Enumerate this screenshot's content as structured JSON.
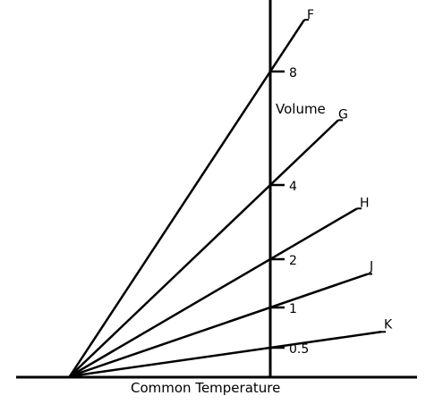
{
  "diagram": {
    "x_axis_label": "Common Temperature",
    "y_axis_label": "Volume",
    "ticks": [
      {
        "label": "8",
        "value": 8
      },
      {
        "label": "4",
        "value": 4
      },
      {
        "label": "2",
        "value": 2
      },
      {
        "label": "1",
        "value": 1
      },
      {
        "label": "0.5",
        "value": 0.5
      }
    ],
    "lines": [
      {
        "label": "F",
        "volume_at_axis": 8
      },
      {
        "label": "G",
        "volume_at_axis": 4
      },
      {
        "label": "H",
        "volume_at_axis": 2
      },
      {
        "label": "J",
        "volume_at_axis": 1
      },
      {
        "label": "K",
        "volume_at_axis": 0.5
      }
    ],
    "line_color": "#000000"
  }
}
